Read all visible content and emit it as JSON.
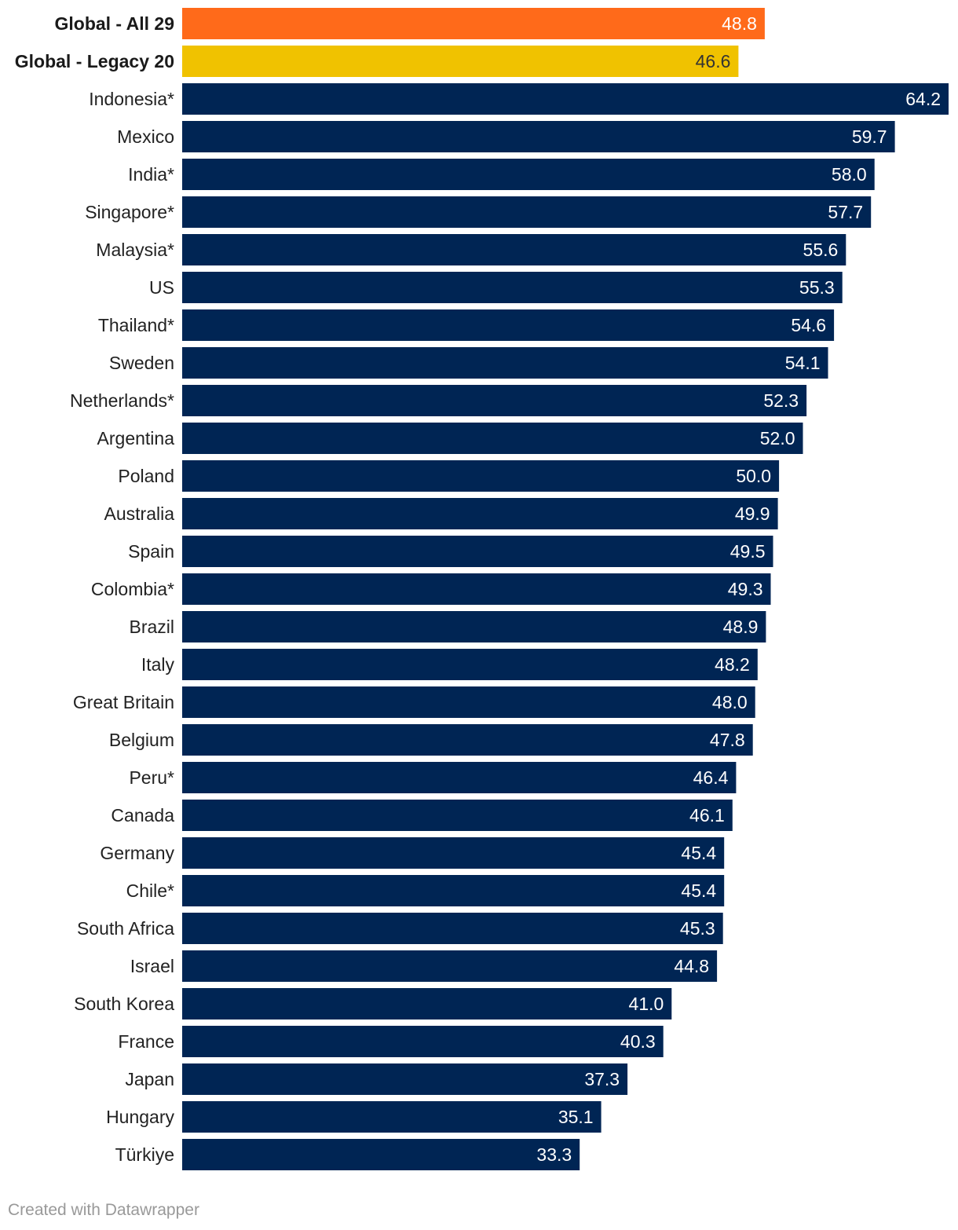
{
  "chart_data": {
    "type": "bar",
    "orientation": "horizontal",
    "title": "",
    "xlabel": "",
    "ylabel": "",
    "xlim": [
      0,
      64.2
    ],
    "grid": false,
    "categories": [
      "Global - All 29",
      "Global - Legacy 20",
      "Indonesia*",
      "Mexico",
      "India*",
      "Singapore*",
      "Malaysia*",
      "US",
      "Thailand*",
      "Sweden",
      "Netherlands*",
      "Argentina",
      "Poland",
      "Australia",
      "Spain",
      "Colombia*",
      "Brazil",
      "Italy",
      "Great Britain",
      "Belgium",
      "Peru*",
      "Canada",
      "Germany",
      "Chile*",
      "South Africa",
      "Israel",
      "South Korea",
      "France",
      "Japan",
      "Hungary",
      "Türkiye"
    ],
    "values": [
      48.8,
      46.6,
      64.2,
      59.7,
      58.0,
      57.7,
      55.6,
      55.3,
      54.6,
      54.1,
      52.3,
      52.0,
      50.0,
      49.9,
      49.5,
      49.3,
      48.9,
      48.2,
      48.0,
      47.8,
      46.4,
      46.1,
      45.4,
      45.4,
      45.3,
      44.8,
      41.0,
      40.3,
      37.3,
      35.1,
      33.3
    ],
    "value_labels": [
      "48.8",
      "46.6",
      "64.2",
      "59.7",
      "58.0",
      "57.7",
      "55.6",
      "55.3",
      "54.6",
      "54.1",
      "52.3",
      "52.0",
      "50.0",
      "49.9",
      "49.5",
      "49.3",
      "48.9",
      "48.2",
      "48.0",
      "47.8",
      "46.4",
      "46.1",
      "45.4",
      "45.4",
      "45.3",
      "44.8",
      "41.0",
      "40.3",
      "37.3",
      "35.1",
      "33.3"
    ],
    "highlighted": [
      0,
      1
    ]
  },
  "colors": {
    "global_all": "#ff6a1a",
    "global_legacy": "#f0c200",
    "country": "#002554",
    "label_on_dark": "#ffffff",
    "label_on_light": "#333333"
  },
  "footer": {
    "credit": "Created with Datawrapper"
  }
}
